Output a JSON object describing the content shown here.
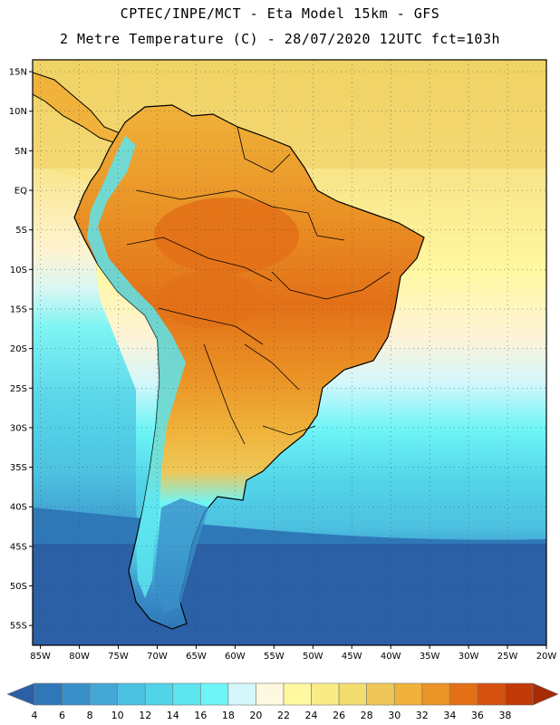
{
  "header": {
    "line1": "CPTEC/INPE/MCT -  Eta Model 15km - GFS",
    "line2": "2 Metre Temperature (C) - 28/07/2020 12UTC fct=103h"
  },
  "map": {
    "lat_labels": [
      "15N",
      "10N",
      "5N",
      "EQ",
      "5S",
      "10S",
      "15S",
      "20S",
      "25S",
      "30S",
      "35S",
      "40S",
      "45S",
      "50S",
      "55S"
    ],
    "lon_labels": [
      "85W",
      "80W",
      "75W",
      "70W",
      "65W",
      "60W",
      "55W",
      "50W",
      "45W",
      "40W",
      "35W",
      "30W",
      "25W",
      "20W"
    ],
    "lat_extent": [
      -57.5,
      16.5
    ],
    "lon_extent": [
      -86,
      -20
    ]
  },
  "colorbar": {
    "ticks": [
      "4",
      "6",
      "8",
      "10",
      "12",
      "14",
      "16",
      "18",
      "20",
      "22",
      "24",
      "26",
      "28",
      "30",
      "32",
      "34",
      "36",
      "38"
    ],
    "colors": [
      "#2b5fa6",
      "#2f78b8",
      "#3a8fc9",
      "#45a7d6",
      "#4cc0e0",
      "#52d4e8",
      "#5ce4ef",
      "#6ff5f7",
      "#d5f6fb",
      "#fff8e0",
      "#fff8a0",
      "#f9ec86",
      "#f3dc6e",
      "#eec758",
      "#f0b23a",
      "#ea9326",
      "#e37017",
      "#d5510f",
      "#c23a08",
      "#a52b05"
    ]
  }
}
